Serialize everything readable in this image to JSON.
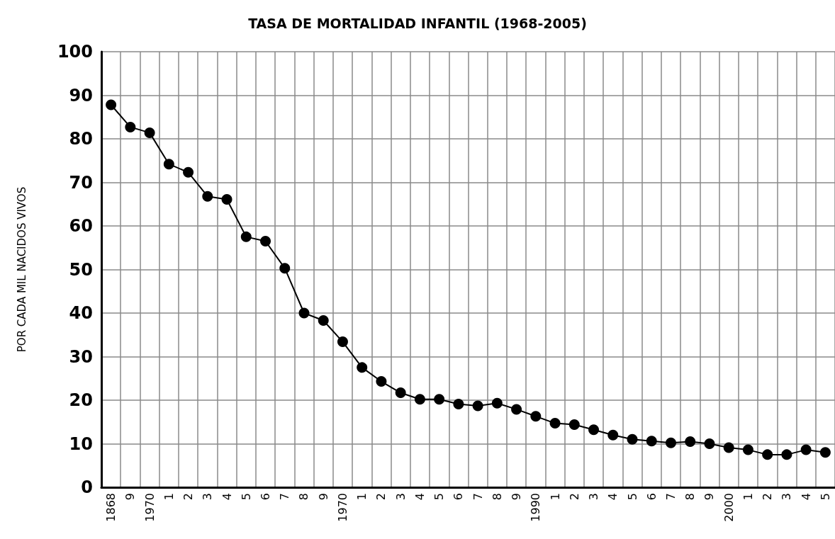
{
  "chart_data": {
    "type": "line",
    "title": "TASA DE MORTALIDAD INFANTIL (1968-2005)",
    "ylabel": "POR CADA MIL NACIDOS VIVOS",
    "categories": [
      "1868",
      "9",
      "1970",
      "1",
      "2",
      "3",
      "4",
      "5",
      "6",
      "7",
      "8",
      "9",
      "1970",
      "1",
      "2",
      "3",
      "4",
      "5",
      "6",
      "7",
      "8",
      "9",
      "1990",
      "1",
      "2",
      "3",
      "4",
      "5",
      "6",
      "7",
      "8",
      "9",
      "2000",
      "1",
      "2",
      "3",
      "4",
      "5"
    ],
    "series": [
      {
        "color": "#000000",
        "values": [
          87.8,
          82.7,
          81.4,
          74.2,
          72.3,
          66.8,
          66.1,
          57.5,
          56.5,
          50.3,
          40.0,
          38.3,
          33.4,
          27.5,
          24.3,
          21.7,
          20.2,
          20.2,
          19.1,
          18.7,
          19.3,
          17.9,
          16.3,
          14.7,
          14.4,
          13.2,
          12.0,
          11.0,
          10.6,
          10.2,
          10.5,
          10.0,
          9.1,
          8.6,
          7.5,
          7.5,
          8.6,
          8.0
        ]
      }
    ],
    "ylim": [
      0,
      100
    ],
    "yticks": [
      0,
      10,
      20,
      30,
      40,
      50,
      60,
      70,
      80,
      90,
      100
    ],
    "grid": true,
    "marker": "circle",
    "line_style": "solid"
  }
}
